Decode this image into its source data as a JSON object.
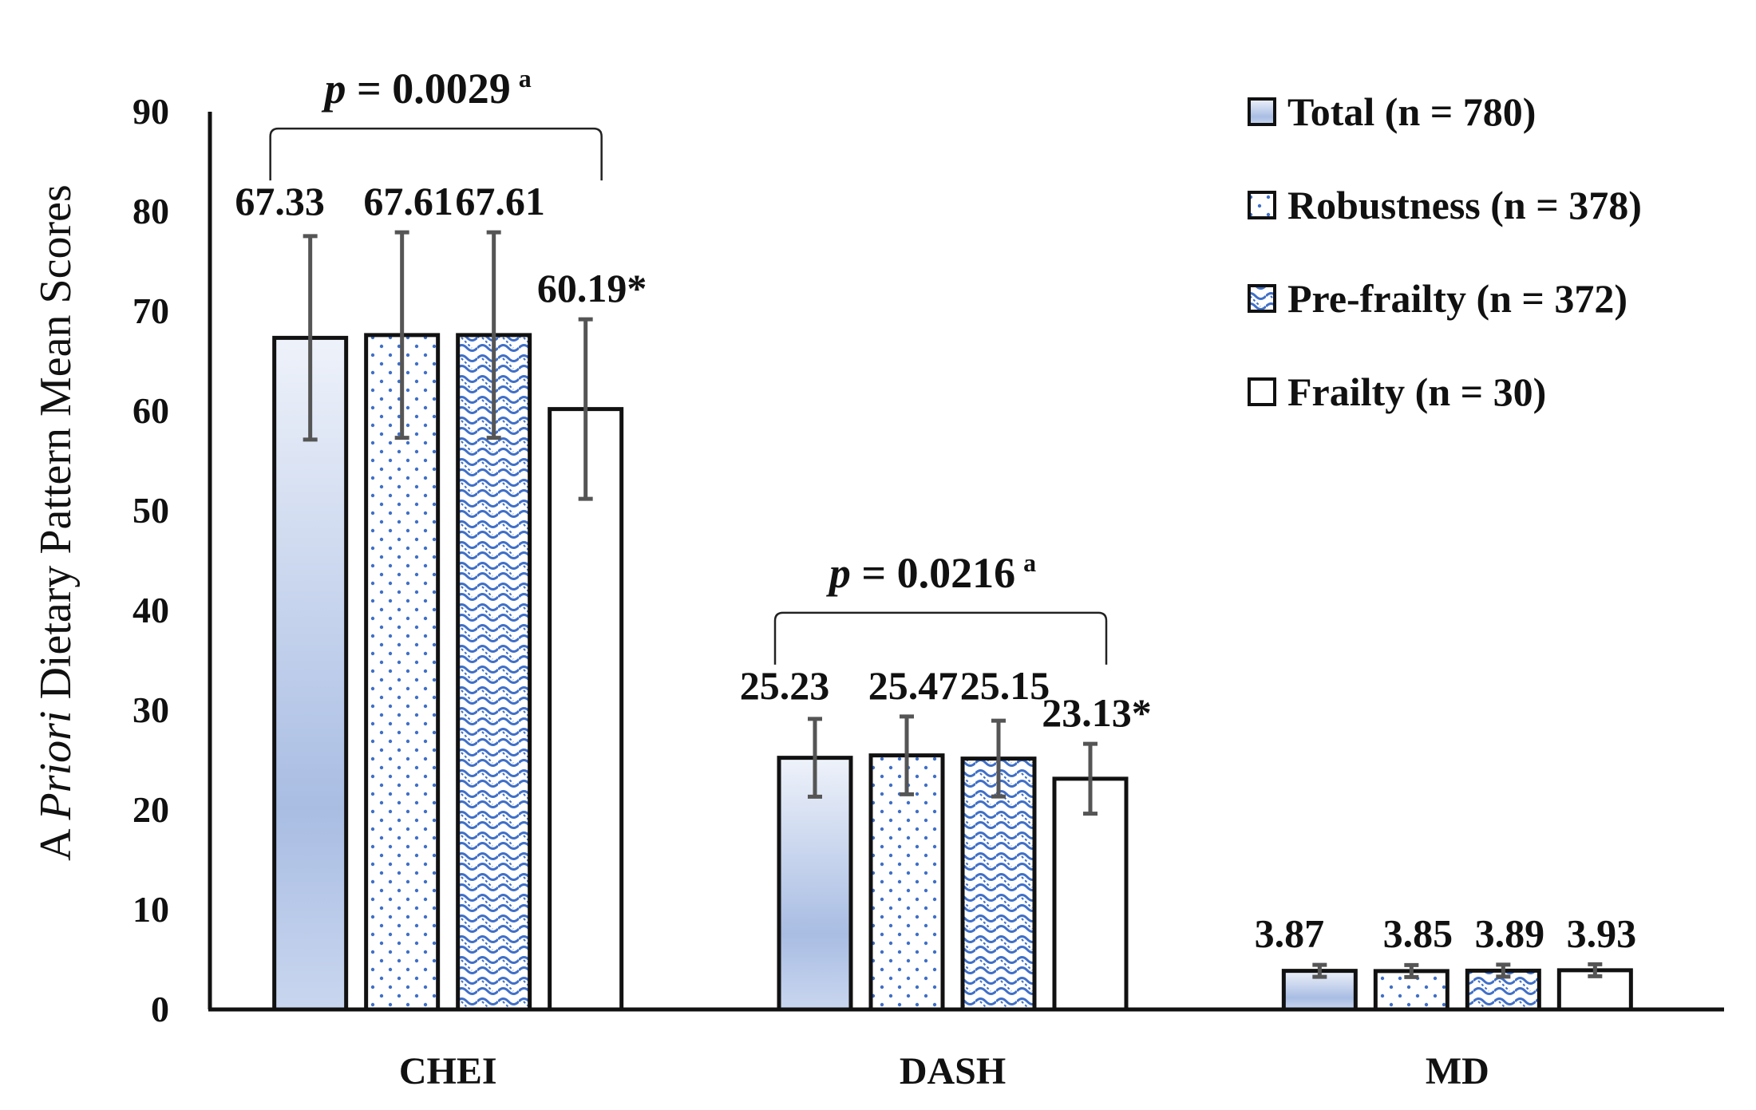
{
  "chart_data": {
    "type": "bar",
    "title": "",
    "ylabel_prefix": "A ",
    "ylabel_italic": "Priori",
    "ylabel_suffix": " Dietary Pattern Mean Scores",
    "ylabel": "A Priori Dietary Pattern Mean Scores",
    "xlabel": "",
    "ylim": [
      0,
      90
    ],
    "yticks": [
      "0",
      "10",
      "20",
      "30",
      "40",
      "50",
      "60",
      "70",
      "80",
      "90"
    ],
    "categories": [
      "CHEI",
      "DASH",
      "MD"
    ],
    "series": [
      {
        "name": "Total (n = 780)",
        "fill": "gradient-blue",
        "values": [
          67.33,
          25.23,
          3.87
        ],
        "errors": [
          10.2,
          3.9,
          0.6
        ],
        "labels": [
          "67.33",
          "25.23",
          "3.87"
        ]
      },
      {
        "name": "Robustness (n = 378)",
        "fill": "dots",
        "values": [
          67.61,
          25.47,
          3.85
        ],
        "errors": [
          10.3,
          3.9,
          0.6
        ],
        "labels": [
          "67.61",
          "25.47",
          "3.85"
        ]
      },
      {
        "name": "Pre-frailty (n = 372)",
        "fill": "waves",
        "values": [
          67.61,
          25.15,
          3.89
        ],
        "errors": [
          10.3,
          3.8,
          0.6
        ],
        "labels": [
          "67.61",
          "25.15",
          "3.89"
        ]
      },
      {
        "name": "Frailty (n = 30)",
        "fill": "white",
        "values": [
          60.19,
          23.13,
          3.93
        ],
        "errors": [
          9.0,
          3.5,
          0.6
        ],
        "labels": [
          "60.19*",
          "23.13*",
          "3.93"
        ]
      }
    ],
    "annotations": [
      {
        "category": "CHEI",
        "p_symbol": "p",
        "p_text": " = 0.0029",
        "superscript": "a"
      },
      {
        "category": "DASH",
        "p_symbol": "p",
        "p_text": " = 0.0216",
        "superscript": "a"
      }
    ],
    "legend_position": "top-right",
    "colors": {
      "gradient_top": "#eef2fa",
      "gradient_bottom": "#a9bde3",
      "pattern_blue": "#3f6fc8",
      "outline": "#111111",
      "error_bar": "#555555"
    }
  }
}
